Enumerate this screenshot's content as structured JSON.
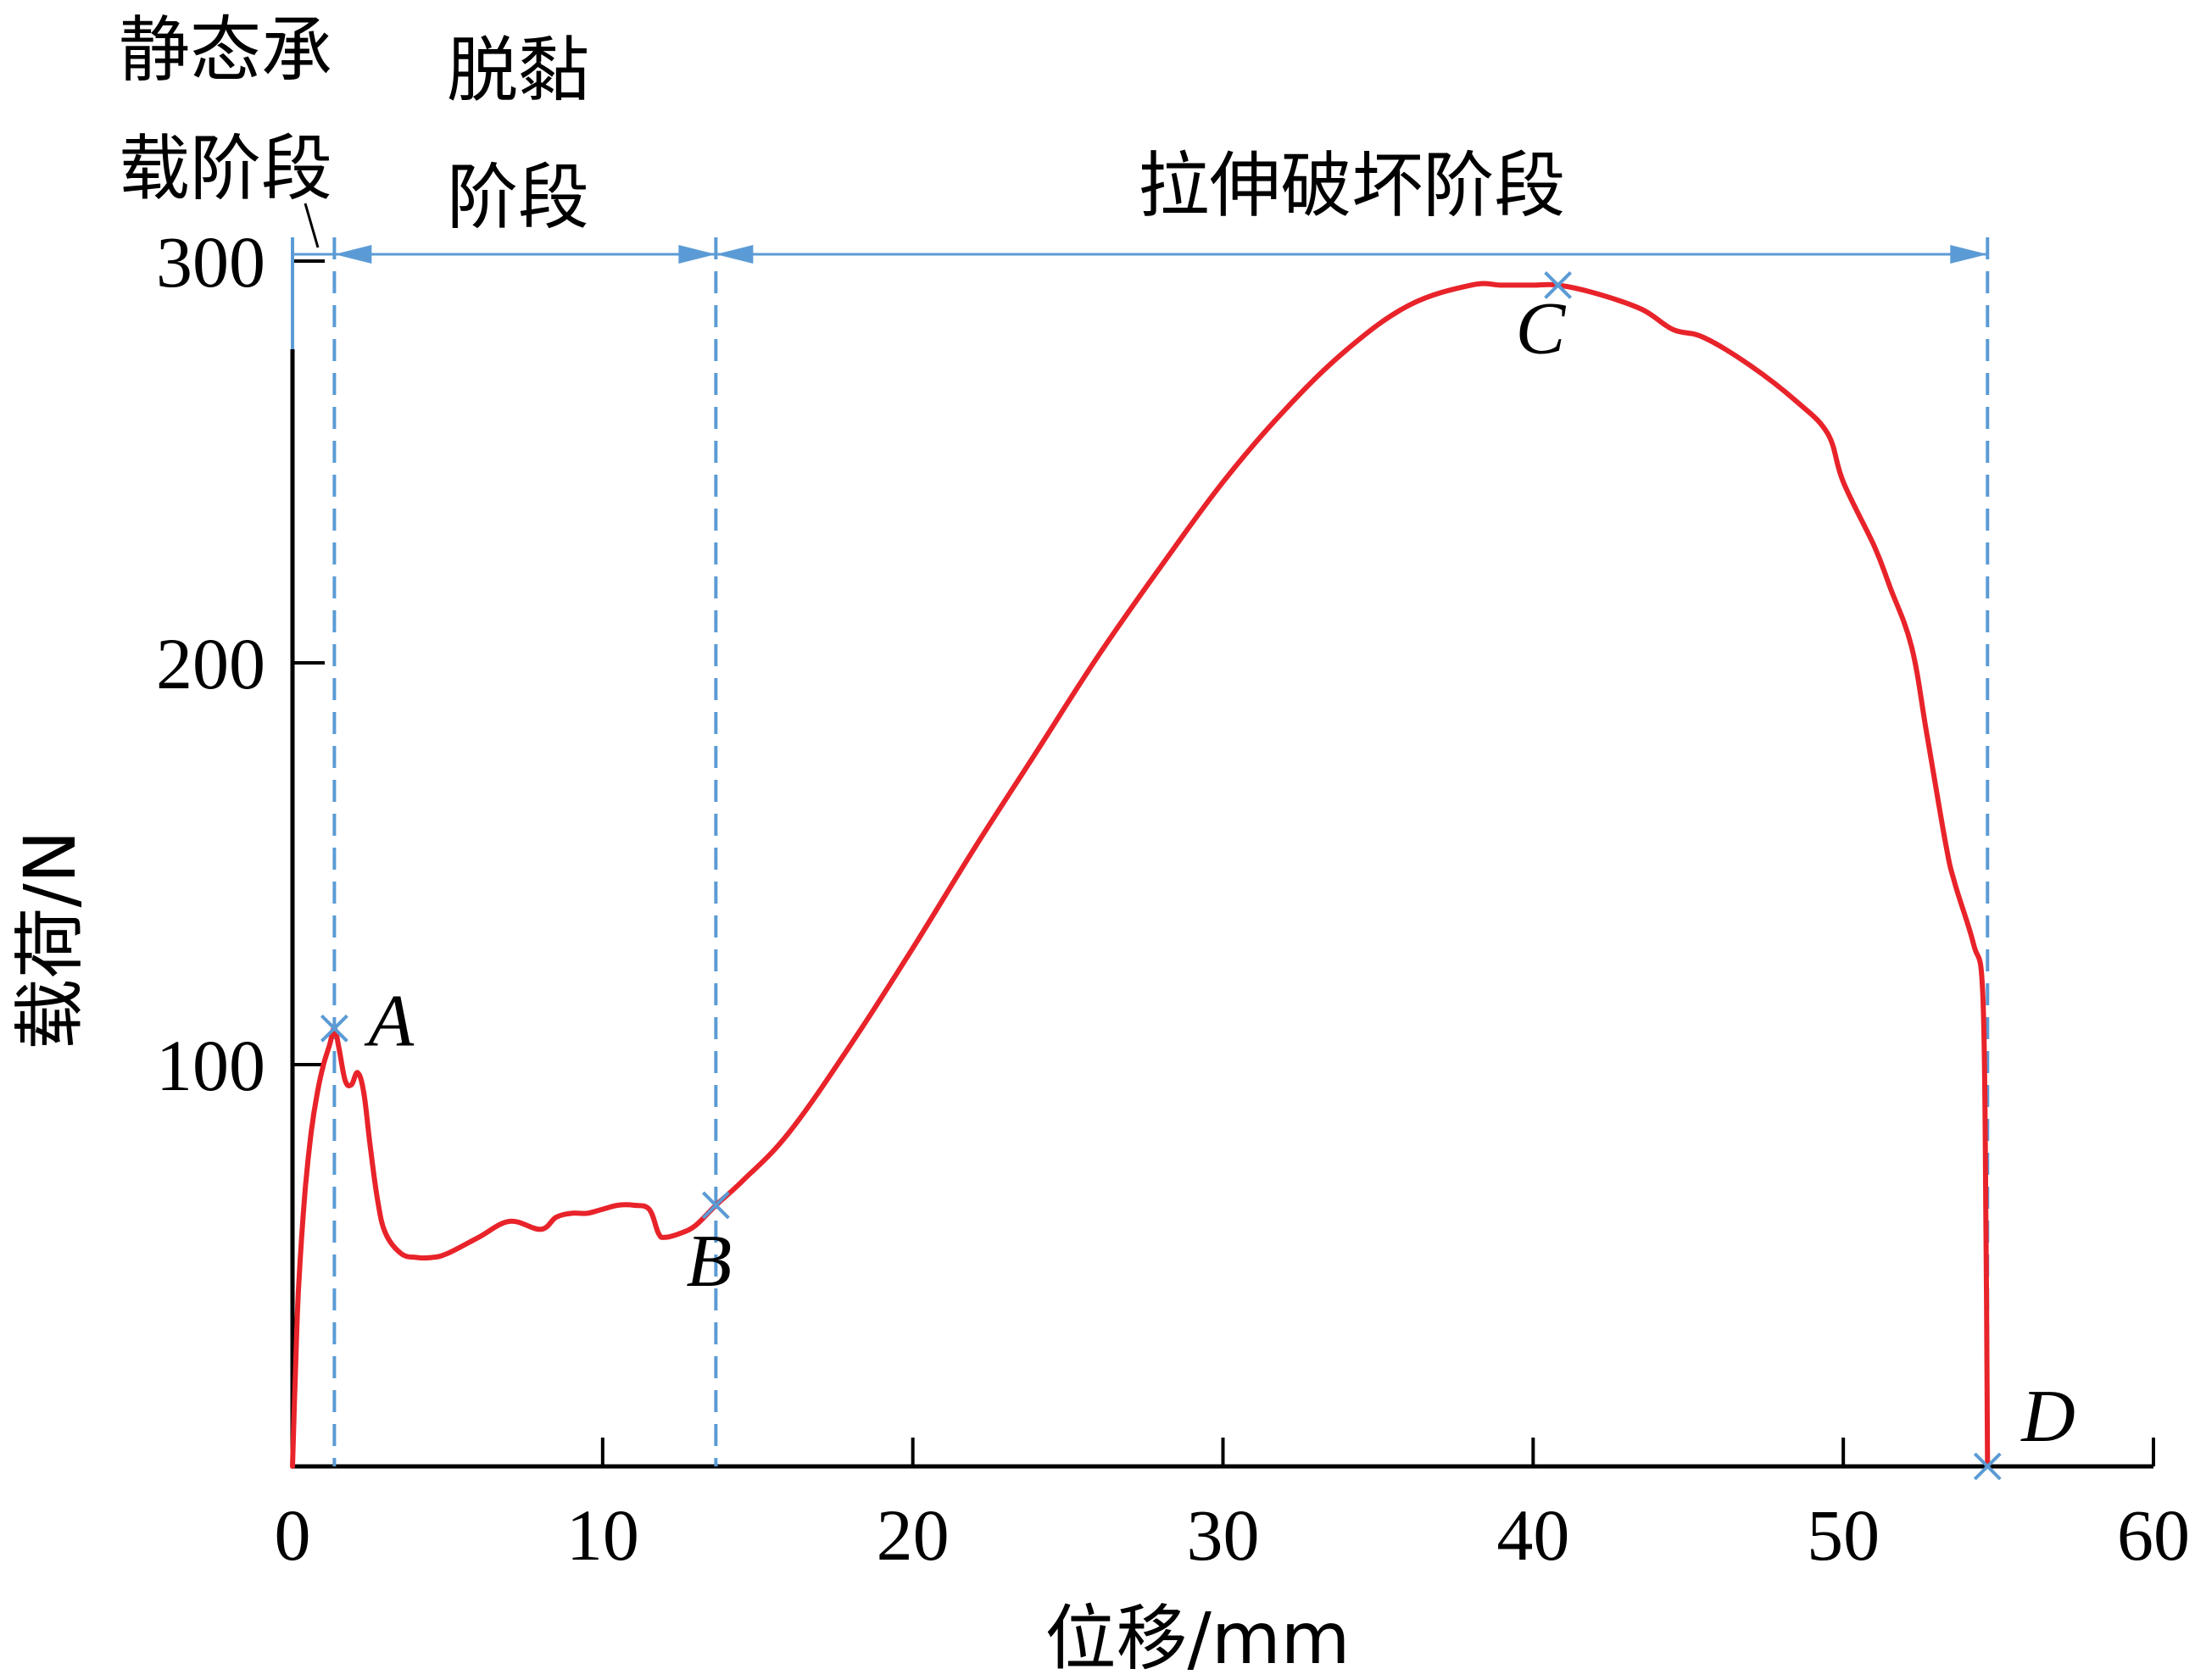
{
  "chart_data": {
    "type": "line",
    "title": "",
    "xlabel": "位移/mm",
    "ylabel": "载荷/N",
    "xlim": [
      0,
      60
    ],
    "ylim": [
      0,
      300
    ],
    "x_ticks": [
      0,
      10,
      20,
      30,
      40,
      50,
      60
    ],
    "y_ticks": [
      100,
      200,
      300
    ],
    "grid": false,
    "colors": {
      "curve": "#e8232a",
      "markers": "#5b9bd5",
      "axes": "#000000"
    },
    "series": [
      {
        "x": [
          0,
          0.1,
          0.2,
          0.4,
          0.6,
          0.8,
          1.0,
          1.2,
          1.35,
          1.5,
          1.7,
          1.9,
          2.1,
          2.3,
          2.5,
          2.75,
          3.0,
          3.5,
          4.0,
          4.5,
          5.0,
          6.0,
          7.0,
          8.0,
          8.5,
          9.0,
          9.5,
          10.0,
          10.5,
          11.0,
          11.5,
          11.8,
          12.0,
          12.5,
          13.0,
          13.65,
          14.5,
          16.0,
          18.0,
          20.0,
          22.0,
          24.0,
          26.0,
          28.0,
          30.0,
          32.0,
          34.0,
          36.0,
          38.0,
          39.0,
          40.0,
          40.8,
          42.0,
          43.5,
          44.5,
          45.5,
          47.0,
          48.5,
          49.5,
          50.0,
          51.0,
          51.5,
          52.2,
          52.7,
          53.3,
          53.6,
          54.2,
          54.5,
          54.6,
          54.65
        ],
        "y": [
          0,
          25,
          45,
          68,
          83,
          93,
          100,
          105,
          109,
          104,
          96,
          95,
          98,
          93,
          80,
          66,
          58,
          53,
          52,
          52,
          53,
          57,
          61,
          59,
          62,
          63,
          63,
          64,
          65,
          65,
          64,
          58,
          57,
          58,
          60,
          65,
          71,
          83,
          105,
          129,
          154,
          178,
          202,
          224,
          245,
          263,
          278,
          289,
          294,
          294,
          294,
          294,
          292,
          288,
          283,
          281,
          274,
          265,
          257,
          245,
          229,
          219,
          204,
          182,
          155,
          145,
          130,
          117,
          60,
          0
        ]
      }
    ],
    "points": [
      {
        "label": "A",
        "x": 1.35,
        "y": 109
      },
      {
        "label": "B",
        "x": 13.65,
        "y": 65
      },
      {
        "label": "C",
        "x": 40.8,
        "y": 294
      },
      {
        "label": "D",
        "x": 54.65,
        "y": 0
      }
    ],
    "stage_boundaries_x": [
      0,
      1.35,
      13.65,
      54.65
    ],
    "stages": [
      "静态承载阶段",
      "脱黏阶段",
      "拉伸破坏阶段"
    ],
    "stage_label_lines": [
      [
        "静态承",
        "载阶段"
      ],
      [
        "脱黏",
        "阶段"
      ],
      [
        "拉伸破坏阶段"
      ]
    ]
  }
}
